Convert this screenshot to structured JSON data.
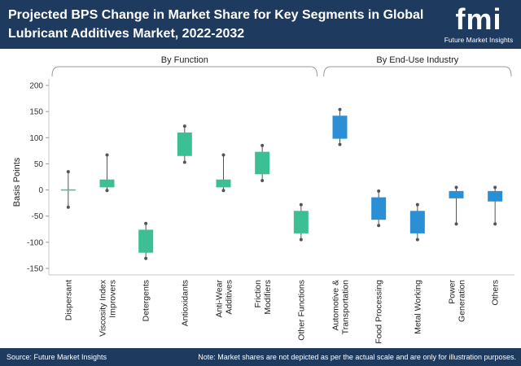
{
  "header": {
    "title": "Projected BPS Change in Market Share for Key Segments in Global Lubricant Additives Market, 2022-2032",
    "logo_mark": "fmi",
    "logo_text": "Future Market Insights"
  },
  "footer": {
    "source": "Source: Future Market Insights",
    "note": "Note: Market shares are not depicted as per the actual scale and are only for illustration purposes."
  },
  "colors": {
    "header_bg": "#1e3a5f",
    "function_series": "#3dbf96",
    "end_use_series": "#2a8fd4"
  },
  "chart_data": {
    "type": "boxplot",
    "ylabel": "Basis Points",
    "ylim": [
      -150,
      200
    ],
    "yticks": [
      -150,
      -100,
      -50,
      0,
      50,
      100,
      150,
      200
    ],
    "groups": [
      {
        "name": "By Function",
        "color": "#3dbf96"
      },
      {
        "name": "By End-Use Industry",
        "color": "#2a8fd4"
      }
    ],
    "categories": [
      {
        "label": "Dispersant",
        "group": 0,
        "low": -33,
        "q1": 0,
        "q3": 0,
        "high": 35
      },
      {
        "label": "Viscosity Index Improvers",
        "group": 0,
        "low": -1,
        "q1": 5,
        "q3": 20,
        "high": 67
      },
      {
        "label": "Detergents",
        "group": 0,
        "low": -131,
        "q1": -120,
        "q3": -76,
        "high": -64
      },
      {
        "label": "Antioxidants",
        "group": 0,
        "low": 53,
        "q1": 65,
        "q3": 110,
        "high": 122
      },
      {
        "label": "Anti-Wear Additives",
        "group": 0,
        "low": -1,
        "q1": 5,
        "q3": 20,
        "high": 67
      },
      {
        "label": "Friction Modifiers",
        "group": 0,
        "low": 18,
        "q1": 30,
        "q3": 73,
        "high": 85
      },
      {
        "label": "Other Functions",
        "group": 0,
        "low": -95,
        "q1": -83,
        "q3": -40,
        "high": -28
      },
      {
        "label": "Automotive & Transportation",
        "group": 1,
        "low": 87,
        "q1": 98,
        "q3": 142,
        "high": 154
      },
      {
        "label": "Food Processing",
        "group": 1,
        "low": -68,
        "q1": -57,
        "q3": -14,
        "high": -2
      },
      {
        "label": "Metal Working",
        "group": 1,
        "low": -95,
        "q1": -83,
        "q3": -40,
        "high": -28
      },
      {
        "label": "Power Generation",
        "group": 1,
        "low": -65,
        "q1": -16,
        "q3": -2,
        "high": 5
      },
      {
        "label": "Others",
        "group": 1,
        "low": -65,
        "q1": -22,
        "q3": -2,
        "high": 5
      }
    ]
  }
}
